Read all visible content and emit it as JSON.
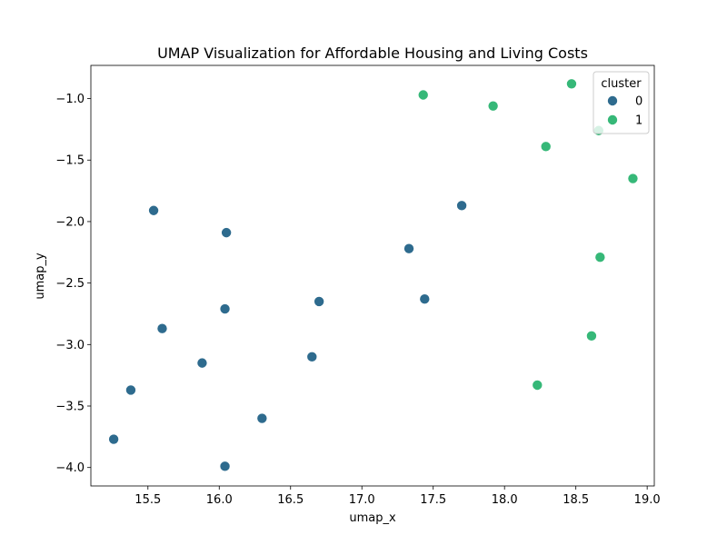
{
  "chart_data": {
    "type": "scatter",
    "title": "UMAP Visualization for Affordable Housing and Living Costs",
    "xlabel": "umap_x",
    "ylabel": "umap_y",
    "xlim": [
      15.1,
      19.05
    ],
    "ylim": [
      -4.15,
      -0.73
    ],
    "xticks": [
      15.5,
      16.0,
      16.5,
      17.0,
      17.5,
      18.0,
      18.5,
      19.0
    ],
    "xtick_labels": [
      "15.5",
      "16.0",
      "16.5",
      "17.0",
      "17.5",
      "18.0",
      "18.5",
      "19.0"
    ],
    "yticks": [
      -1.0,
      -1.5,
      -2.0,
      -2.5,
      -3.0,
      -3.5,
      -4.0
    ],
    "ytick_labels": [
      "−1.0",
      "−1.5",
      "−2.0",
      "−2.5",
      "−3.0",
      "−3.5",
      "−4.0"
    ],
    "grid": false,
    "legend": {
      "title": "cluster",
      "placement": "top-right"
    },
    "series": [
      {
        "name": "0",
        "color": "#2e6b8e",
        "points": [
          {
            "x": 15.26,
            "y": -3.77
          },
          {
            "x": 15.38,
            "y": -3.37
          },
          {
            "x": 15.54,
            "y": -1.91
          },
          {
            "x": 15.6,
            "y": -2.87
          },
          {
            "x": 15.88,
            "y": -3.15
          },
          {
            "x": 16.04,
            "y": -2.71
          },
          {
            "x": 16.05,
            "y": -2.09
          },
          {
            "x": 16.04,
            "y": -3.99
          },
          {
            "x": 16.3,
            "y": -3.6
          },
          {
            "x": 16.65,
            "y": -3.1
          },
          {
            "x": 16.7,
            "y": -2.65
          },
          {
            "x": 17.33,
            "y": -2.22
          },
          {
            "x": 17.44,
            "y": -2.63
          },
          {
            "x": 17.7,
            "y": -1.87
          }
        ]
      },
      {
        "name": "1",
        "color": "#36b878",
        "points": [
          {
            "x": 17.43,
            "y": -0.97
          },
          {
            "x": 17.92,
            "y": -1.06
          },
          {
            "x": 18.29,
            "y": -1.39
          },
          {
            "x": 18.47,
            "y": -0.88
          },
          {
            "x": 18.66,
            "y": -1.26
          },
          {
            "x": 18.9,
            "y": -1.65
          },
          {
            "x": 18.67,
            "y": -2.29
          },
          {
            "x": 18.61,
            "y": -2.93
          },
          {
            "x": 18.23,
            "y": -3.33
          }
        ]
      }
    ]
  }
}
